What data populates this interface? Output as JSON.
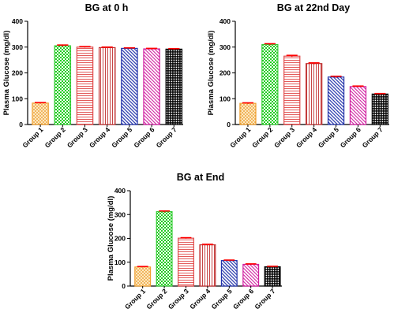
{
  "chart_data": [
    {
      "type": "bar",
      "title": "BG at 0 h",
      "ylabel": "Plasma Glucose (mg/dl)",
      "xlabel": "",
      "categories": [
        "Group 1",
        "Group 2",
        "Group 3",
        "Group 4",
        "Group 5",
        "Group 6",
        "Group 7"
      ],
      "values": [
        83,
        305,
        300,
        298,
        295,
        293,
        292
      ],
      "error": [
        2,
        3,
        2,
        2,
        2,
        2,
        2
      ],
      "ylim": [
        0,
        400
      ],
      "yticks": [
        0,
        100,
        200,
        300,
        400
      ],
      "grid": false
    },
    {
      "type": "bar",
      "title": "BG at 22nd Day",
      "ylabel": "Plasma Glucose (mg/dl)",
      "xlabel": "",
      "categories": [
        "Group 1",
        "Group 2",
        "Group 3",
        "Group 4",
        "Group 5",
        "Group 6",
        "Group 7"
      ],
      "values": [
        82,
        310,
        265,
        236,
        184,
        147,
        118
      ],
      "error": [
        2,
        3,
        3,
        3,
        3,
        2,
        2
      ],
      "ylim": [
        0,
        400
      ],
      "yticks": [
        0,
        100,
        200,
        300,
        400
      ],
      "grid": false
    },
    {
      "type": "bar",
      "title": "BG at End",
      "ylabel": "Plasma Glucose (mg/dl)",
      "xlabel": "",
      "categories": [
        "Group 1",
        "Group 2",
        "Group 3",
        "Group 4",
        "Group 5",
        "Group 6",
        "Group 7"
      ],
      "values": [
        80,
        312,
        201,
        173,
        107,
        91,
        81
      ],
      "error": [
        2,
        3,
        2,
        2,
        2,
        2,
        2
      ],
      "ylim": [
        0,
        400
      ],
      "yticks": [
        0,
        100,
        200,
        300,
        400
      ],
      "grid": false
    }
  ],
  "bar_styles": [
    {
      "group": "Group 1",
      "color": "#f0a030",
      "pattern": "dots"
    },
    {
      "group": "Group 2",
      "color": "#33cc33",
      "pattern": "checks"
    },
    {
      "group": "Group 3",
      "color": "#e04848",
      "pattern": "hlines"
    },
    {
      "group": "Group 4",
      "color": "#c03030",
      "pattern": "vlines"
    },
    {
      "group": "Group 5",
      "color": "#2233aa",
      "pattern": "diagonal"
    },
    {
      "group": "Group 6",
      "color": "#d020a0",
      "pattern": "diagonal"
    },
    {
      "group": "Group 7",
      "color": "#000000",
      "pattern": "grid"
    }
  ],
  "error_bar_color": "#ff0000"
}
